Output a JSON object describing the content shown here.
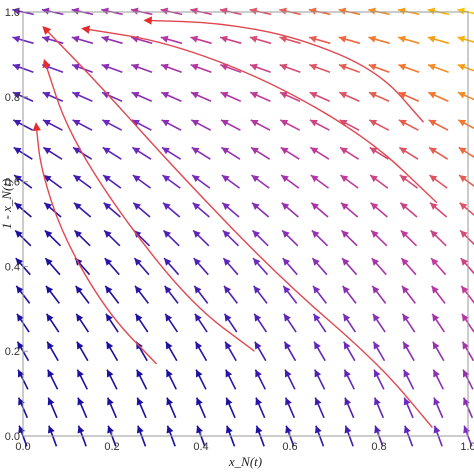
{
  "chart_data": {
    "type": "vector-field",
    "title": "",
    "xlabel": "x_N(t)",
    "ylabel": "1 - x_N(t)",
    "xlim": [
      0,
      1
    ],
    "ylim": [
      0,
      1
    ],
    "x_ticks": [
      "0.0",
      "0.2",
      "0.4",
      "0.6",
      "0.8",
      "1.0"
    ],
    "y_ticks": [
      "0.0",
      "0.2",
      "0.4",
      "0.6",
      "0.8",
      "1.0"
    ],
    "grid": false,
    "arrow_grid": {
      "nx": 16,
      "ny": 16,
      "x_range": [
        0.0,
        1.0
      ],
      "y_range": [
        0.0,
        1.0
      ]
    },
    "colormap": [
      "#1a0f9e",
      "#6f2bbf",
      "#c0399c",
      "#f0663e",
      "#f9c400"
    ],
    "trajectory_color": "#e0484f",
    "trajectories": [
      {
        "points": [
          [
            0.9,
            0.74
          ],
          [
            0.8,
            0.86
          ],
          [
            0.62,
            0.94
          ],
          [
            0.44,
            0.975
          ],
          [
            0.28,
            0.98
          ]
        ]
      },
      {
        "points": [
          [
            0.93,
            0.55
          ],
          [
            0.78,
            0.7
          ],
          [
            0.55,
            0.84
          ],
          [
            0.32,
            0.93
          ],
          [
            0.14,
            0.96
          ]
        ]
      },
      {
        "points": [
          [
            0.92,
            0.02
          ],
          [
            0.8,
            0.17
          ],
          [
            0.58,
            0.37
          ],
          [
            0.35,
            0.62
          ],
          [
            0.17,
            0.83
          ],
          [
            0.05,
            0.96
          ]
        ]
      },
      {
        "points": [
          [
            0.52,
            0.2
          ],
          [
            0.38,
            0.31
          ],
          [
            0.22,
            0.52
          ],
          [
            0.1,
            0.72
          ],
          [
            0.05,
            0.88
          ]
        ]
      },
      {
        "points": [
          [
            0.3,
            0.17
          ],
          [
            0.19,
            0.29
          ],
          [
            0.09,
            0.47
          ],
          [
            0.04,
            0.63
          ],
          [
            0.03,
            0.73
          ]
        ]
      }
    ]
  }
}
